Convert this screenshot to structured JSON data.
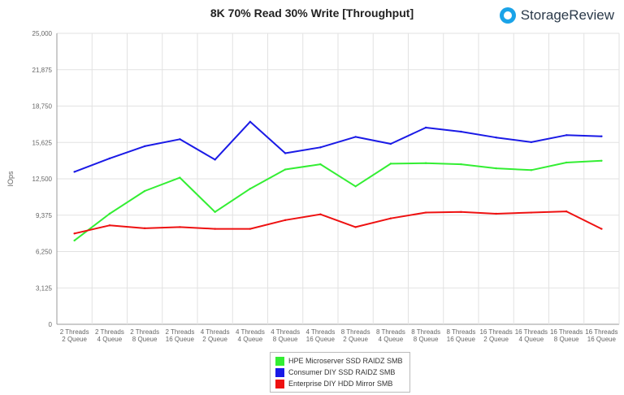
{
  "chart_data": {
    "type": "line",
    "title": "8K 70% Read 30% Write [Throughput]",
    "ylabel": "IOps",
    "ylim": [
      0,
      25000
    ],
    "yticks": [
      "0",
      "3,125",
      "6,250",
      "9,375",
      "12,500",
      "15,625",
      "18,750",
      "21,875",
      "25,000"
    ],
    "grid": true,
    "legend_position": "bottom",
    "categories": [
      [
        "2 Threads",
        "2 Queue"
      ],
      [
        "2 Threads",
        "4 Queue"
      ],
      [
        "2 Threads",
        "8 Queue"
      ],
      [
        "2 Threads",
        "16 Queue"
      ],
      [
        "4 Threads",
        "2 Queue"
      ],
      [
        "4 Threads",
        "4 Queue"
      ],
      [
        "4 Threads",
        "8 Queue"
      ],
      [
        "4 Threads",
        "16 Queue"
      ],
      [
        "8 Threads",
        "2 Queue"
      ],
      [
        "8 Threads",
        "4 Queue"
      ],
      [
        "8 Threads",
        "8 Queue"
      ],
      [
        "8 Threads",
        "16 Queue"
      ],
      [
        "16 Threads",
        "2 Queue"
      ],
      [
        "16 Threads",
        "4 Queue"
      ],
      [
        "16 Threads",
        "8 Queue"
      ],
      [
        "16 Threads",
        "16 Queue"
      ]
    ],
    "series": [
      {
        "name": "HPE Microserver SSD RAIDZ SMB",
        "color": "#33ee33",
        "values": [
          7200,
          9500,
          11450,
          12600,
          9650,
          11650,
          13300,
          13750,
          11850,
          13800,
          13850,
          13750,
          13400,
          13250,
          13900,
          14050
        ]
      },
      {
        "name": "Consumer DIY SSD RAIDZ SMB",
        "color": "#1a1ae6",
        "values": [
          13100,
          14250,
          15300,
          15900,
          14150,
          17400,
          14700,
          15200,
          16100,
          15500,
          16900,
          16550,
          16050,
          15650,
          16250,
          16150
        ]
      },
      {
        "name": "Enterprise DIY HDD Mirror SMB",
        "color": "#ee1111",
        "values": [
          7800,
          8500,
          8250,
          8350,
          8200,
          8200,
          8950,
          9450,
          8350,
          9100,
          9600,
          9650,
          9500,
          9600,
          9700,
          8200
        ]
      }
    ]
  },
  "branding": {
    "logo_text": "StorageReview",
    "logo_icon": "storagereview-logo-icon"
  }
}
